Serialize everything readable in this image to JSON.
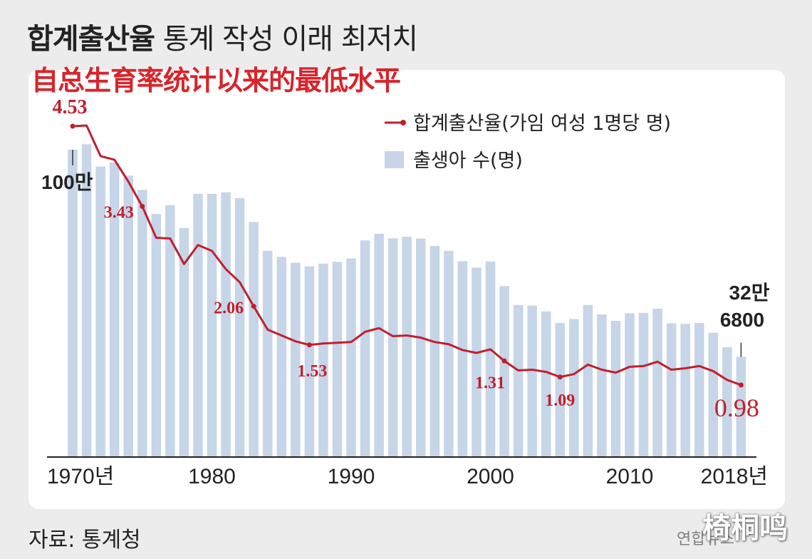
{
  "header": {
    "title_bold": "합계출산율",
    "title_rest": " 통계 작성 이래 최저치",
    "subtitle": "自总生育率统计以来的最低水平"
  },
  "footer": {
    "source": "자료: 통계청",
    "agency": "연합뉴스",
    "watermark": "椅桐鸣"
  },
  "colors": {
    "line": "#c0202c",
    "bar": "#c6d5e8",
    "subtitle": "#d8242b"
  },
  "chart_data": {
    "type": "bar+line",
    "years": [
      1970,
      1971,
      1972,
      1973,
      1974,
      1975,
      1976,
      1977,
      1978,
      1979,
      1980,
      1981,
      1982,
      1983,
      1984,
      1985,
      1986,
      1987,
      1988,
      1989,
      1990,
      1991,
      1992,
      1993,
      1994,
      1995,
      1996,
      1997,
      1998,
      1999,
      2000,
      2001,
      2002,
      2003,
      2004,
      2005,
      2006,
      2007,
      2008,
      2009,
      2010,
      2011,
      2012,
      2013,
      2014,
      2015,
      2016,
      2017,
      2018
    ],
    "series": [
      {
        "name": "합계출산율(가임 여성 1명당 명)",
        "type": "line",
        "values": [
          4.53,
          4.54,
          4.12,
          4.07,
          3.77,
          3.43,
          3.0,
          2.99,
          2.64,
          2.9,
          2.82,
          2.57,
          2.39,
          2.06,
          1.74,
          1.66,
          1.58,
          1.53,
          1.55,
          1.56,
          1.57,
          1.71,
          1.76,
          1.65,
          1.66,
          1.63,
          1.57,
          1.54,
          1.46,
          1.42,
          1.47,
          1.31,
          1.18,
          1.19,
          1.16,
          1.09,
          1.13,
          1.26,
          1.19,
          1.15,
          1.23,
          1.24,
          1.3,
          1.19,
          1.21,
          1.24,
          1.17,
          1.05,
          0.98
        ]
      },
      {
        "name": "출생아 수(명)",
        "type": "bar",
        "values": [
          1007000,
          1025000,
          952000,
          965000,
          922000,
          875000,
          796000,
          825000,
          750000,
          862000,
          862000,
          867000,
          848000,
          770000,
          675000,
          655000,
          636000,
          624000,
          633000,
          639000,
          650000,
          709000,
          731000,
          716000,
          721000,
          715000,
          691000,
          675000,
          641000,
          620000,
          640000,
          559000,
          497000,
          495000,
          476000,
          438000,
          451000,
          497000,
          466000,
          445000,
          470000,
          471000,
          485000,
          437000,
          435000,
          438000,
          406000,
          358000,
          326800
        ]
      }
    ],
    "value_labels": [
      {
        "year": 1970,
        "text": "4.53"
      },
      {
        "year": 1975,
        "text": "3.43"
      },
      {
        "year": 1983,
        "text": "2.06"
      },
      {
        "year": 1987,
        "text": "1.53"
      },
      {
        "year": 2001,
        "text": "1.31"
      },
      {
        "year": 2005,
        "text": "1.09"
      },
      {
        "year": 2018,
        "text": "0.98"
      }
    ],
    "bar_labels": {
      "first": "100만",
      "last_line1": "32만",
      "last_line2": "6800"
    },
    "x_tick_labels": [
      {
        "year": 1970,
        "text": "1970년"
      },
      {
        "year": 1980,
        "text": "1980"
      },
      {
        "year": 1990,
        "text": "1990"
      },
      {
        "year": 2000,
        "text": "2000"
      },
      {
        "year": 2010,
        "text": "2010"
      },
      {
        "year": 2018,
        "text": "2018년"
      }
    ],
    "legend": {
      "line_label": "합계출산율(가임 여성 1명당 명)",
      "bar_label": "출생아 수(명)",
      "position": "top-right"
    },
    "line_range": [
      0,
      5
    ],
    "grid": false
  }
}
